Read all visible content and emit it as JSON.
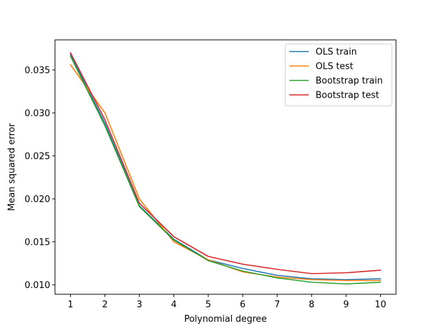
{
  "chart_data": {
    "type": "line",
    "xlabel": "Polynomial degree",
    "ylabel": "Mean squared error",
    "x": [
      1,
      2,
      3,
      4,
      5,
      6,
      7,
      8,
      9,
      10
    ],
    "xlim": [
      0.55,
      10.45
    ],
    "ylim": [
      0.0089,
      0.0385
    ],
    "xticks": [
      "1",
      "2",
      "3",
      "4",
      "5",
      "6",
      "7",
      "8",
      "9",
      "10"
    ],
    "yticks": [
      "0.010",
      "0.015",
      "0.020",
      "0.025",
      "0.030",
      "0.035"
    ],
    "grid": false,
    "legend_position": "top-right",
    "series": [
      {
        "name": "OLS train",
        "color": "#1f77b4",
        "values": [
          0.0368,
          0.0288,
          0.0192,
          0.0153,
          0.0129,
          0.0119,
          0.0111,
          0.0107,
          0.0106,
          0.0107
        ]
      },
      {
        "name": "OLS test",
        "color": "#ff7f0e",
        "values": [
          0.0356,
          0.03,
          0.02,
          0.015,
          0.0129,
          0.0115,
          0.0109,
          0.0106,
          0.0105,
          0.0105
        ]
      },
      {
        "name": "Bootstrap train",
        "color": "#2ca02c",
        "values": [
          0.0366,
          0.0285,
          0.0191,
          0.0152,
          0.0128,
          0.0116,
          0.0108,
          0.0103,
          0.0101,
          0.0103
        ]
      },
      {
        "name": "Bootstrap test",
        "color": "#d62728",
        "values": [
          0.037,
          0.0292,
          0.0195,
          0.0156,
          0.0133,
          0.0124,
          0.0118,
          0.0113,
          0.0114,
          0.0117
        ]
      }
    ]
  }
}
